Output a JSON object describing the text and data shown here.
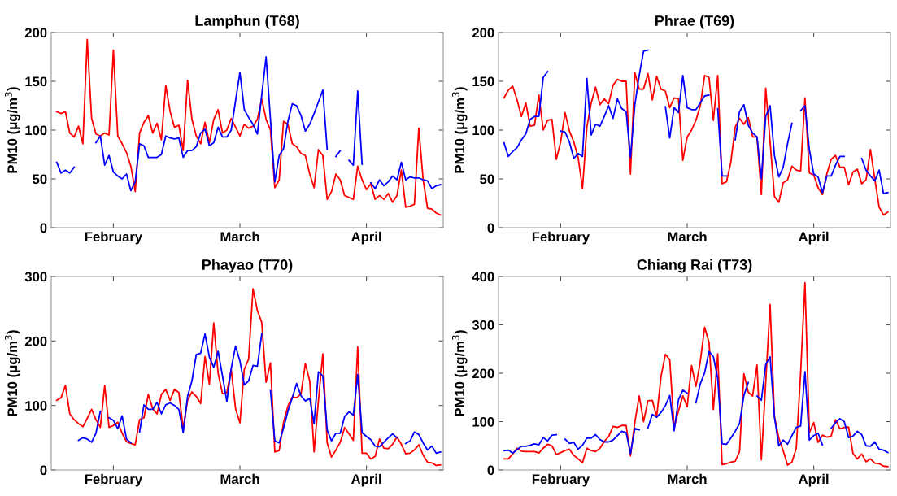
{
  "chart_data": [
    {
      "type": "line",
      "title": "Lamphun (T68)",
      "ylabel": "PM10 (μg/m$^{3}$)",
      "categories": [
        null,
        null,
        null,
        null,
        null,
        null,
        null,
        null,
        null,
        null,
        null,
        null,
        null,
        "February",
        null,
        null,
        null,
        null,
        null,
        null,
        null,
        null,
        null,
        null,
        null,
        null,
        null,
        null,
        null,
        null,
        null,
        null,
        null,
        null,
        null,
        null,
        null,
        null,
        null,
        null,
        null,
        null,
        "March",
        null,
        null,
        null,
        null,
        null,
        null,
        null,
        null,
        null,
        null,
        null,
        null,
        null,
        null,
        null,
        null,
        null,
        null,
        null,
        null,
        null,
        null,
        null,
        null,
        null,
        null,
        null,
        null,
        "April",
        null,
        null,
        null,
        null,
        null,
        null,
        null,
        null,
        null,
        null,
        null,
        null,
        null,
        null,
        null,
        null,
        null
      ],
      "ylim": [
        0,
        200
      ],
      "yticks": [
        0,
        50,
        100,
        150,
        200
      ],
      "grid": false,
      "series": [
        {
          "color": "#ff0000",
          "values": [
            119,
            117,
            119,
            97,
            93,
            104,
            86,
            193,
            112,
            96,
            94,
            97,
            95,
            182,
            94,
            86,
            77,
            63,
            37,
            97,
            108,
            115,
            97,
            107,
            90,
            146,
            119,
            103,
            105,
            79,
            151,
            111,
            94,
            86,
            108,
            87,
            111,
            121,
            97,
            100,
            112,
            103,
            94,
            106,
            102,
            104,
            111,
            132,
            111,
            100,
            41,
            49,
            109,
            106,
            86,
            83,
            76,
            74,
            55,
            41,
            80,
            74,
            29,
            37,
            55,
            49,
            33,
            31,
            29,
            63,
            49,
            39,
            45,
            29,
            33,
            29,
            35,
            26,
            33,
            59,
            21,
            22,
            24,
            102,
            49,
            20,
            19,
            15,
            13
          ]
        },
        {
          "color": "#0000ff",
          "values": [
            67,
            56,
            59,
            56,
            62,
            null,
            null,
            null,
            null,
            87,
            94,
            64,
            74,
            57,
            53,
            50,
            55,
            38,
            47,
            86,
            84,
            72,
            72,
            72,
            75,
            94,
            92,
            91,
            92,
            72,
            79,
            79,
            83,
            97,
            101,
            84,
            87,
            103,
            93,
            93,
            100,
            130,
            159,
            121,
            113,
            106,
            96,
            136,
            175,
            111,
            47,
            74,
            81,
            109,
            127,
            125,
            115,
            99,
            106,
            117,
            129,
            141,
            80,
            null,
            73,
            79,
            null,
            69,
            64,
            140,
            65,
            null,
            46,
            40,
            49,
            43,
            47,
            53,
            49,
            67,
            49,
            52,
            51,
            51,
            49,
            48,
            40,
            43,
            44
          ]
        }
      ]
    },
    {
      "type": "line",
      "title": "Phrae (T69)",
      "ylabel": "PM10 (μg/m$^{3}$)",
      "categories": [
        null,
        null,
        null,
        null,
        null,
        null,
        null,
        null,
        null,
        null,
        null,
        null,
        null,
        "February",
        null,
        null,
        null,
        null,
        null,
        null,
        null,
        null,
        null,
        null,
        null,
        null,
        null,
        null,
        null,
        null,
        null,
        null,
        null,
        null,
        null,
        null,
        null,
        null,
        null,
        null,
        null,
        null,
        "March",
        null,
        null,
        null,
        null,
        null,
        null,
        null,
        null,
        null,
        null,
        null,
        null,
        null,
        null,
        null,
        null,
        null,
        null,
        null,
        null,
        null,
        null,
        null,
        null,
        null,
        null,
        null,
        null,
        "April",
        null,
        null,
        null,
        null,
        null,
        null,
        null,
        null,
        null,
        null,
        null,
        null,
        null,
        null,
        null,
        null,
        null
      ],
      "ylim": [
        0,
        200
      ],
      "yticks": [
        0,
        50,
        100,
        150,
        200
      ],
      "grid": false,
      "series": [
        {
          "color": "#ff0000",
          "values": [
            133,
            141,
            145,
            131,
            114,
            128,
            104,
            105,
            136,
            100,
            110,
            111,
            70,
            88,
            118,
            99,
            88,
            72,
            40,
            103,
            128,
            144,
            126,
            132,
            127,
            146,
            152,
            150,
            150,
            55,
            159,
            142,
            142,
            158,
            131,
            155,
            142,
            140,
            123,
            133,
            132,
            69,
            93,
            100,
            110,
            125,
            156,
            154,
            110,
            156,
            45,
            47,
            67,
            103,
            112,
            106,
            113,
            93,
            93,
            34,
            143,
            88,
            32,
            26,
            46,
            49,
            63,
            59,
            58,
            133,
            56,
            54,
            41,
            34,
            55,
            70,
            74,
            62,
            62,
            44,
            57,
            60,
            45,
            49,
            80,
            50,
            21,
            13,
            16
          ]
        },
        {
          "color": "#0000ff",
          "values": [
            87,
            73,
            78,
            82,
            90,
            96,
            111,
            114,
            114,
            154,
            160,
            null,
            null,
            99,
            98,
            88,
            71,
            76,
            73,
            153,
            95,
            106,
            104,
            114,
            125,
            112,
            132,
            122,
            119,
            72,
            126,
            156,
            181,
            182,
            null,
            null,
            null,
            124,
            92,
            123,
            118,
            156,
            123,
            121,
            121,
            128,
            135,
            136,
            null,
            122,
            53,
            53,
            null,
            90,
            119,
            126,
            105,
            97,
            93,
            50,
            114,
            125,
            74,
            52,
            62,
            86,
            107,
            null,
            120,
            125,
            80,
            55,
            52,
            36,
            53,
            53,
            64,
            73,
            73,
            null,
            null,
            null,
            71,
            59,
            53,
            48,
            59,
            35,
            36
          ]
        }
      ]
    },
    {
      "type": "line",
      "title": "Phayao (T70)",
      "ylabel": "PM10 (μg/m$^{3}$)",
      "categories": [
        null,
        null,
        null,
        null,
        null,
        null,
        null,
        null,
        null,
        null,
        null,
        null,
        null,
        "February",
        null,
        null,
        null,
        null,
        null,
        null,
        null,
        null,
        null,
        null,
        null,
        null,
        null,
        null,
        null,
        null,
        null,
        null,
        null,
        null,
        null,
        null,
        null,
        null,
        null,
        null,
        null,
        null,
        "March",
        null,
        null,
        null,
        null,
        null,
        null,
        null,
        null,
        null,
        null,
        null,
        null,
        null,
        null,
        null,
        null,
        null,
        null,
        null,
        null,
        null,
        null,
        null,
        null,
        null,
        null,
        null,
        null,
        "April",
        null,
        null,
        null,
        null,
        null,
        null,
        null,
        null,
        null,
        null,
        null,
        null,
        null,
        null,
        null,
        null,
        null
      ],
      "ylim": [
        0,
        300
      ],
      "yticks": [
        0,
        100,
        200,
        300
      ],
      "grid": false,
      "series": [
        {
          "color": "#ff0000",
          "values": [
            108,
            112,
            131,
            87,
            78,
            72,
            67,
            80,
            94,
            78,
            66,
            131,
            66,
            69,
            74,
            57,
            44,
            41,
            39,
            78,
            81,
            117,
            95,
            87,
            117,
            125,
            108,
            125,
            120,
            64,
            108,
            121,
            114,
            103,
            176,
            133,
            228,
            150,
            118,
            120,
            156,
            95,
            73,
            156,
            172,
            281,
            247,
            229,
            136,
            166,
            28,
            30,
            74,
            99,
            113,
            112,
            118,
            165,
            138,
            28,
            108,
            180,
            42,
            20,
            31,
            43,
            66,
            56,
            46,
            191,
            26,
            26,
            17,
            21,
            48,
            34,
            33,
            40,
            51,
            40,
            25,
            26,
            31,
            39,
            23,
            12,
            11,
            7,
            8
          ]
        },
        {
          "color": "#0000ff",
          "values": [
            null,
            null,
            null,
            null,
            null,
            46,
            50,
            48,
            43,
            57,
            91,
            null,
            81,
            77,
            64,
            84,
            48,
            42,
            null,
            59,
            101,
            94,
            94,
            105,
            87,
            101,
            104,
            100,
            94,
            58,
            114,
            138,
            179,
            181,
            211,
            175,
            159,
            184,
            146,
            106,
            157,
            192,
            169,
            132,
            138,
            162,
            161,
            211,
            null,
            123,
            45,
            42,
            65,
            91,
            112,
            134,
            115,
            107,
            111,
            72,
            152,
            146,
            62,
            45,
            57,
            57,
            83,
            90,
            85,
            148,
            58,
            52,
            47,
            37,
            36,
            43,
            50,
            56,
            50,
            null,
            41,
            45,
            59,
            55,
            42,
            31,
            37,
            26,
            28
          ]
        }
      ]
    },
    {
      "type": "line",
      "title": "Chiang Rai (T73)",
      "ylabel": "PM10 (μg/m$^{3}$)",
      "categories": [
        null,
        null,
        null,
        null,
        null,
        null,
        null,
        null,
        null,
        null,
        null,
        null,
        null,
        "February",
        null,
        null,
        null,
        null,
        null,
        null,
        null,
        null,
        null,
        null,
        null,
        null,
        null,
        null,
        null,
        null,
        null,
        null,
        null,
        null,
        null,
        null,
        null,
        null,
        null,
        null,
        null,
        null,
        "March",
        null,
        null,
        null,
        null,
        null,
        null,
        null,
        null,
        null,
        null,
        null,
        null,
        null,
        null,
        null,
        null,
        null,
        null,
        null,
        null,
        null,
        null,
        null,
        null,
        null,
        null,
        null,
        null,
        "April",
        null,
        null,
        null,
        null,
        null,
        null,
        null,
        null,
        null,
        null,
        null,
        null,
        null,
        null,
        null,
        null,
        null
      ],
      "ylim": [
        0,
        400
      ],
      "yticks": [
        0,
        100,
        200,
        300,
        400
      ],
      "grid": false,
      "series": [
        {
          "color": "#ff0000",
          "values": [
            23,
            23,
            33,
            45,
            39,
            38,
            38,
            38,
            35,
            45,
            53,
            50,
            32,
            36,
            40,
            43,
            30,
            23,
            15,
            45,
            40,
            38,
            45,
            59,
            69,
            90,
            88,
            92,
            92,
            29,
            99,
            153,
            100,
            143,
            144,
            110,
            193,
            239,
            228,
            87,
            122,
            153,
            131,
            216,
            173,
            224,
            295,
            264,
            125,
            240,
            11,
            13,
            16,
            18,
            38,
            199,
            161,
            153,
            217,
            21,
            181,
            342,
            110,
            66,
            40,
            10,
            16,
            45,
            200,
            387,
            77,
            98,
            57,
            72,
            68,
            70,
            104,
            85,
            88,
            89,
            34,
            23,
            33,
            17,
            23,
            14,
            13,
            8,
            7
          ]
        },
        {
          "color": "#0000ff",
          "values": [
            40,
            41,
            35,
            42,
            49,
            49,
            51,
            54,
            52,
            67,
            60,
            72,
            73,
            null,
            64,
            55,
            57,
            43,
            51,
            66,
            66,
            73,
            63,
            58,
            58,
            62,
            71,
            80,
            77,
            34,
            86,
            83,
            null,
            87,
            115,
            109,
            119,
            133,
            154,
            81,
            145,
            165,
            159,
            null,
            139,
            178,
            201,
            245,
            234,
            189,
            54,
            53,
            66,
            80,
            96,
            154,
            181,
            null,
            153,
            144,
            218,
            234,
            109,
            50,
            62,
            53,
            71,
            88,
            91,
            203,
            62,
            71,
            76,
            52,
            null,
            86,
            98,
            106,
            100,
            67,
            70,
            80,
            73,
            50,
            49,
            58,
            43,
            41,
            36
          ]
        }
      ]
    }
  ]
}
